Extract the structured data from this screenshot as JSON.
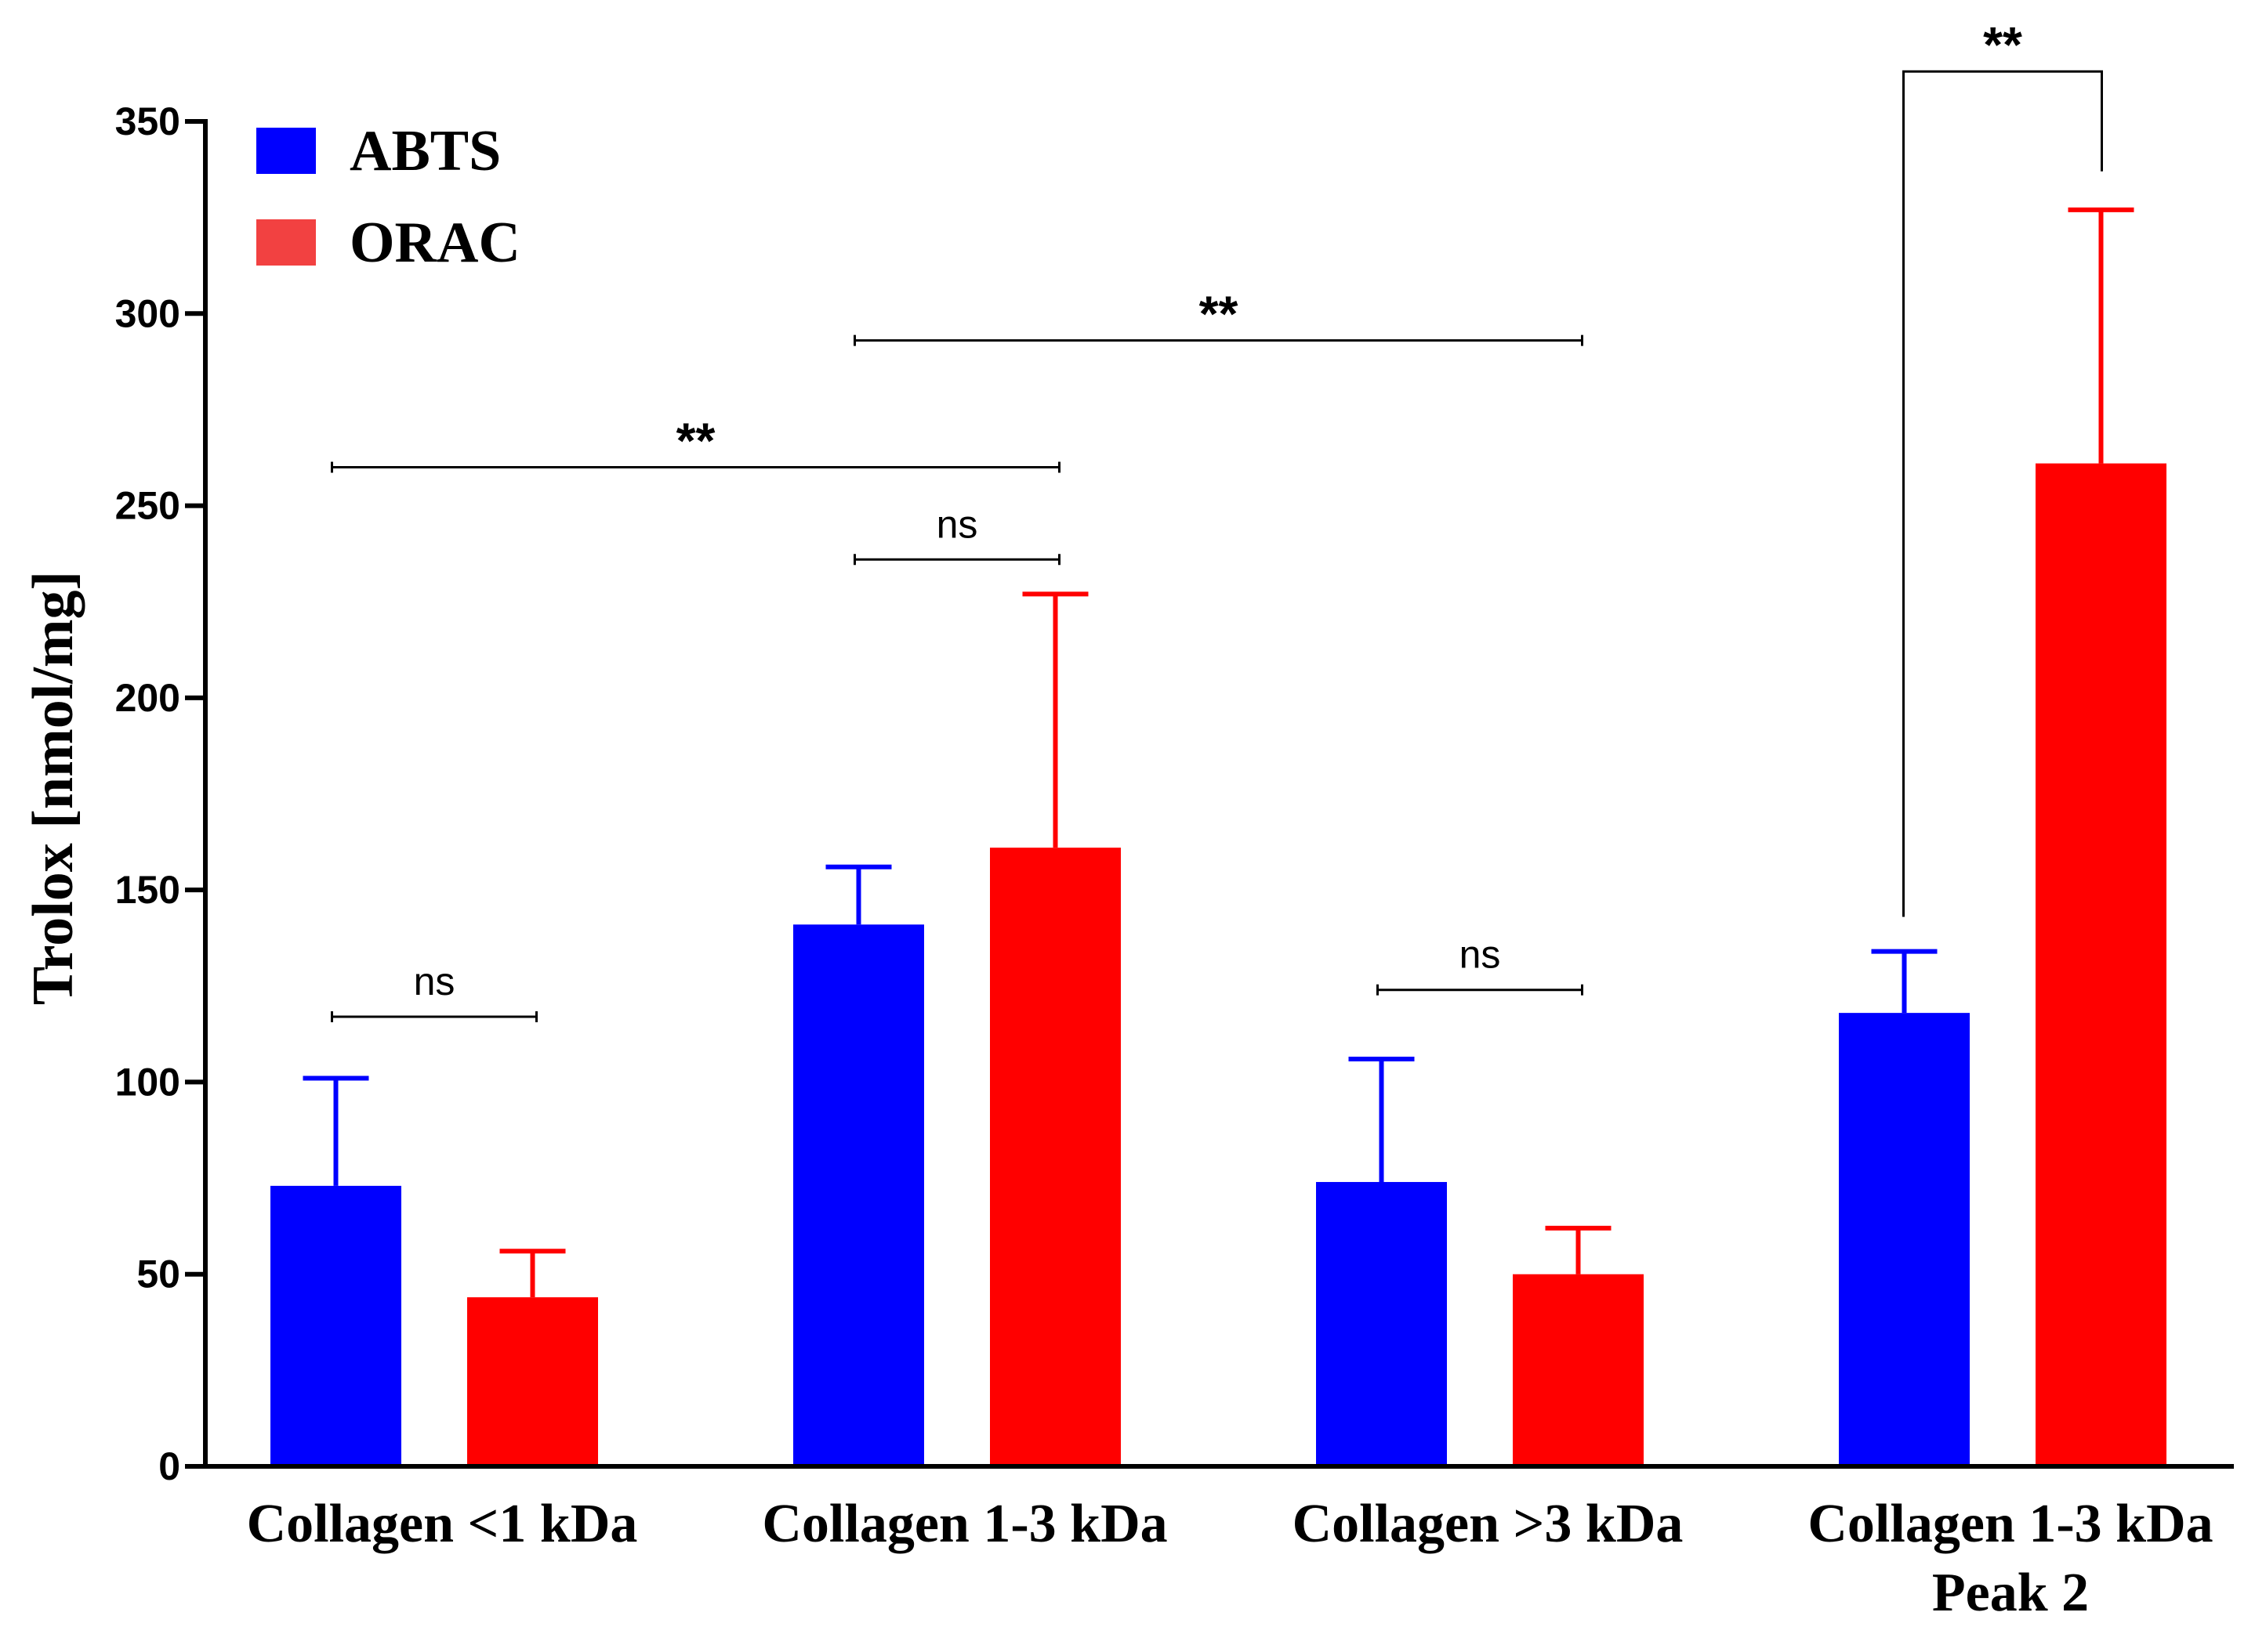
{
  "chart_data": {
    "type": "bar",
    "title": "",
    "xlabel": "",
    "ylabel": "Trolox [nmol/mg]",
    "ylim": [
      0,
      350
    ],
    "yticks": [
      "0",
      "50",
      "100",
      "150",
      "200",
      "250",
      "300",
      "350"
    ],
    "categories": [
      [
        "Collagen <1 kDa"
      ],
      [
        "Collagen 1-3 kDa"
      ],
      [
        "Collagen >3 kDa"
      ],
      [
        "Collagen 1-3 kDa",
        "Peak 2"
      ]
    ],
    "series": [
      {
        "name": "ABTS",
        "color": "#0000ff",
        "values": [
          73,
          141,
          74,
          118
        ],
        "error": [
          28,
          15,
          32,
          16
        ]
      },
      {
        "name": "ORAC",
        "color": "#ff0000",
        "values": [
          44,
          161,
          50,
          261
        ],
        "error": [
          12,
          66,
          12,
          66
        ]
      }
    ],
    "legend": {
      "placement": "top-left",
      "swatch_colors": [
        "#0000ff",
        "#f24141"
      ]
    },
    "annotations": [
      {
        "label": "ns",
        "from_category": 0,
        "from_series": 0,
        "to_category": 0,
        "to_series": 1,
        "y": 117,
        "style": "bracket"
      },
      {
        "label": "ns",
        "from_category": 1,
        "from_series": 0,
        "to_category": 1,
        "to_series": 1,
        "y": 236,
        "style": "bracket"
      },
      {
        "label": "ns",
        "from_category": 2,
        "from_series": 0,
        "to_category": 2,
        "to_series": 1,
        "y": 124,
        "style": "bracket"
      },
      {
        "label": "**",
        "from_category": 0,
        "from_series": 0,
        "to_category": 1,
        "to_series": 1,
        "y": 260,
        "style": "bracket"
      },
      {
        "label": "**",
        "from_category": 1,
        "from_series": 0,
        "to_category": 2,
        "to_series": 1,
        "y": 293,
        "style": "bracket"
      },
      {
        "label": "**",
        "from_category": 3,
        "from_series": 0,
        "to_category": 3,
        "to_series": 1,
        "y": 363,
        "style": "drop",
        "from_y": 143,
        "to_y": 337
      }
    ],
    "grid": false
  }
}
